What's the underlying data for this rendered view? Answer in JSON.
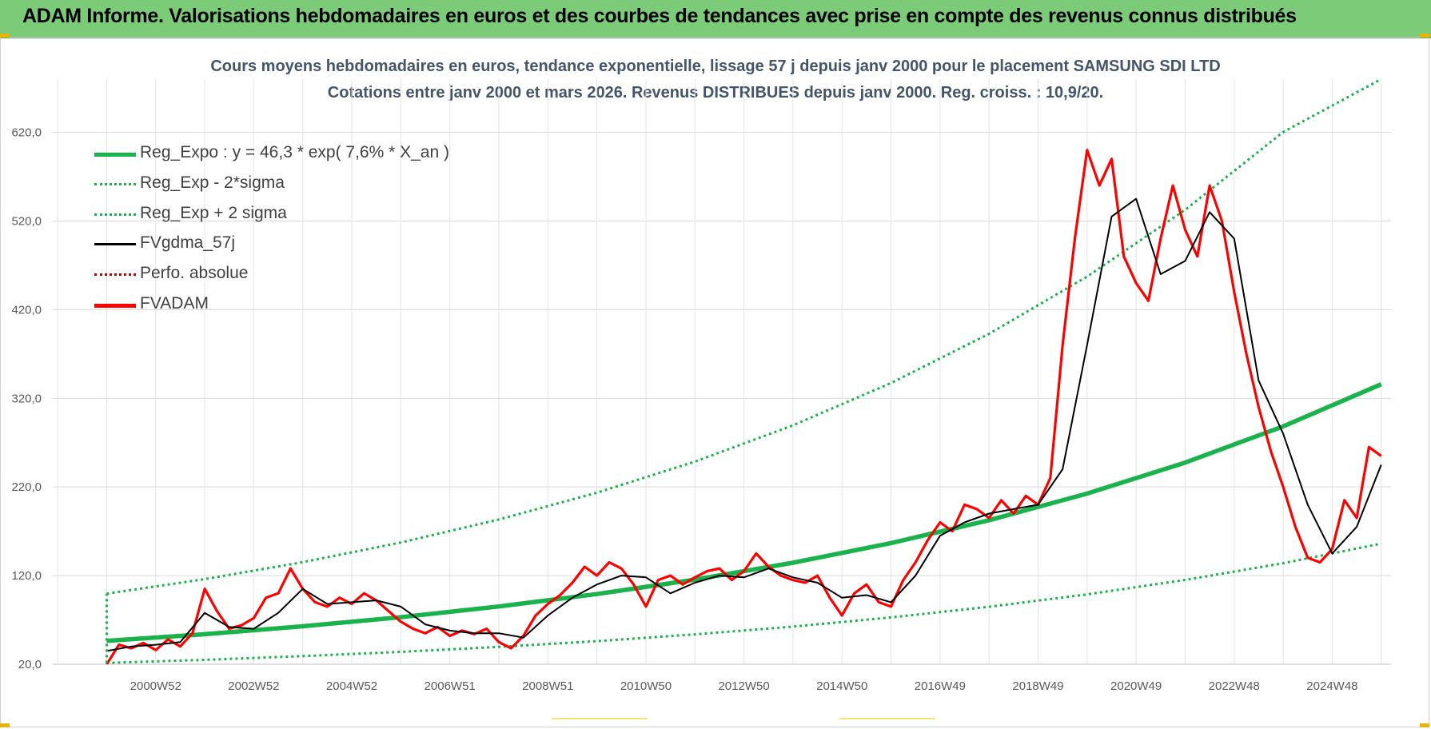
{
  "banner_title": "ADAM Informe. Valorisations hebdomadaires en euros et des courbes de tendances avec prise en compte des revenus connus distribués",
  "chart_data": {
    "type": "line",
    "title": "Cours moyens hebdomadaires en euros, tendance exponentielle, lissage 57 j depuis janv 2000  pour le placement SAMSUNG SDI LTD",
    "subtitle": "Cotations entre janv 2000 et mars 2026. Revenus DISTRIBUES depuis janv 2000. Reg. croiss. : 10,9/20.",
    "xlabel": "",
    "ylabel": "",
    "x_range": [
      1998.9,
      2026.2
    ],
    "ylim": [
      20,
      680
    ],
    "y_ticks": [
      20,
      120,
      220,
      320,
      420,
      520,
      620
    ],
    "y_tick_labels": [
      "20,0",
      "120,0",
      "220,0",
      "320,0",
      "420,0",
      "520,0",
      "620,0"
    ],
    "x_tick_labels": [
      "2000W52",
      "2002W52",
      "2004W52",
      "2006W51",
      "2008W51",
      "2010W50",
      "2012W50",
      "2014W50",
      "2016W49",
      "2018W49",
      "2020W49",
      "2022W48",
      "2024W48"
    ],
    "x_tick_positions": [
      2001.0,
      2003.0,
      2005.0,
      2007.0,
      2009.0,
      2011.0,
      2013.0,
      2015.0,
      2017.0,
      2019.0,
      2021.0,
      2023.0,
      2025.0
    ],
    "grid": true,
    "legend_position": "top-left",
    "series": [
      {
        "name": "Reg_Expo : y = 46,3 * exp( 7,6% *  X_an )",
        "color": "#19b24b",
        "style": "solid-thick",
        "x": [
          2000.0,
          2002.0,
          2004.0,
          2006.0,
          2008.0,
          2010.0,
          2012.0,
          2014.0,
          2016.0,
          2018.0,
          2020.0,
          2022.0,
          2024.0,
          2026.0
        ],
        "y": [
          46.3,
          53.9,
          62.8,
          73.1,
          85.2,
          99.2,
          115.5,
          134.5,
          156.7,
          182.5,
          212.5,
          247.5,
          288.3,
          335.8
        ]
      },
      {
        "name": "Reg_Exp - 2*sigma",
        "color": "#19b24b",
        "style": "dotted",
        "x": [
          2000.0,
          2002.0,
          2004.0,
          2006.0,
          2008.0,
          2010.0,
          2012.0,
          2014.0,
          2016.0,
          2018.0,
          2020.0,
          2022.0,
          2024.0,
          2026.0
        ],
        "y": [
          21.5,
          25.0,
          29.2,
          34.0,
          39.6,
          46.1,
          53.7,
          62.5,
          72.8,
          84.8,
          98.8,
          115.1,
          134.0,
          156.1
        ]
      },
      {
        "name": "Reg_Exp + 2 sigma",
        "color": "#19b24b",
        "style": "dotted",
        "x": [
          2000.0,
          2002.0,
          2004.0,
          2006.0,
          2008.0,
          2010.0,
          2012.0,
          2014.0,
          2016.0,
          2018.0,
          2020.0,
          2022.0,
          2024.0,
          2026.0
        ],
        "y": [
          99.6,
          116.0,
          135.1,
          157.3,
          183.3,
          213.5,
          248.6,
          289.5,
          337.2,
          392.7,
          457.3,
          532.6,
          620.3,
          680.0
        ]
      },
      {
        "name": "FVgdma_57j",
        "color": "#000000",
        "style": "solid",
        "x": [
          2000.0,
          2000.5,
          2001.0,
          2001.5,
          2002.0,
          2002.5,
          2003.0,
          2003.5,
          2004.0,
          2004.5,
          2005.0,
          2005.5,
          2006.0,
          2006.5,
          2007.0,
          2007.5,
          2008.0,
          2008.5,
          2009.0,
          2009.5,
          2010.0,
          2010.5,
          2011.0,
          2011.5,
          2012.0,
          2012.5,
          2013.0,
          2013.5,
          2014.0,
          2014.5,
          2015.0,
          2015.5,
          2016.0,
          2016.5,
          2017.0,
          2017.5,
          2018.0,
          2018.5,
          2019.0,
          2019.5,
          2020.0,
          2020.5,
          2021.0,
          2021.5,
          2022.0,
          2022.5,
          2023.0,
          2023.5,
          2024.0,
          2024.5,
          2025.0,
          2025.5,
          2026.0
        ],
        "y": [
          35,
          40,
          42,
          45,
          78,
          62,
          60,
          78,
          105,
          88,
          90,
          92,
          85,
          65,
          58,
          55,
          55,
          50,
          75,
          95,
          110,
          120,
          118,
          100,
          112,
          120,
          118,
          128,
          118,
          112,
          95,
          98,
          90,
          120,
          165,
          180,
          190,
          195,
          200,
          240,
          380,
          525,
          545,
          460,
          475,
          530,
          500,
          340,
          280,
          200,
          145,
          175,
          245
        ]
      },
      {
        "name": "Perfo. absolue",
        "color": "#c00000",
        "style": "dotted",
        "x": [],
        "y": []
      },
      {
        "name": "FVADAM",
        "color": "#ff0000",
        "style": "solid-thick",
        "x": [
          2000.0,
          2000.25,
          2000.5,
          2000.75,
          2001.0,
          2001.25,
          2001.5,
          2001.75,
          2002.0,
          2002.25,
          2002.5,
          2002.75,
          2003.0,
          2003.25,
          2003.5,
          2003.75,
          2004.0,
          2004.25,
          2004.5,
          2004.75,
          2005.0,
          2005.25,
          2005.5,
          2005.75,
          2006.0,
          2006.25,
          2006.5,
          2006.75,
          2007.0,
          2007.25,
          2007.5,
          2007.75,
          2008.0,
          2008.25,
          2008.5,
          2008.75,
          2009.0,
          2009.25,
          2009.5,
          2009.75,
          2010.0,
          2010.25,
          2010.5,
          2010.75,
          2011.0,
          2011.25,
          2011.5,
          2011.75,
          2012.0,
          2012.25,
          2012.5,
          2012.75,
          2013.0,
          2013.25,
          2013.5,
          2013.75,
          2014.0,
          2014.25,
          2014.5,
          2014.75,
          2015.0,
          2015.25,
          2015.5,
          2015.75,
          2016.0,
          2016.25,
          2016.5,
          2016.75,
          2017.0,
          2017.25,
          2017.5,
          2017.75,
          2018.0,
          2018.25,
          2018.5,
          2018.75,
          2019.0,
          2019.25,
          2019.5,
          2019.75,
          2020.0,
          2020.25,
          2020.5,
          2020.75,
          2021.0,
          2021.25,
          2021.5,
          2021.75,
          2022.0,
          2022.25,
          2022.5,
          2022.75,
          2023.0,
          2023.25,
          2023.5,
          2023.75,
          2024.0,
          2024.25,
          2024.5,
          2024.75,
          2025.0,
          2025.25,
          2025.5,
          2025.75,
          2026.0
        ],
        "y": [
          20,
          42,
          38,
          44,
          36,
          48,
          40,
          55,
          105,
          80,
          60,
          64,
          72,
          95,
          100,
          128,
          105,
          90,
          85,
          95,
          88,
          100,
          92,
          80,
          68,
          60,
          55,
          62,
          52,
          58,
          54,
          60,
          45,
          38,
          52,
          75,
          88,
          98,
          112,
          130,
          120,
          135,
          128,
          110,
          85,
          115,
          120,
          110,
          118,
          125,
          128,
          115,
          125,
          145,
          130,
          120,
          115,
          112,
          120,
          95,
          75,
          100,
          110,
          90,
          85,
          115,
          135,
          160,
          180,
          170,
          200,
          195,
          185,
          205,
          190,
          210,
          200,
          230,
          380,
          500,
          600,
          560,
          590,
          480,
          450,
          430,
          500,
          560,
          510,
          480,
          560,
          520,
          440,
          370,
          310,
          260,
          220,
          175,
          140,
          135,
          150,
          205,
          185,
          265,
          255
        ]
      }
    ]
  }
}
